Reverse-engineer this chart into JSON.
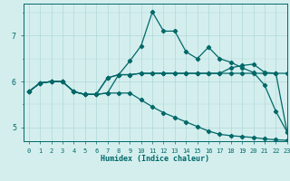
{
  "background_color": "#d4eeee",
  "grid_color": "#afd8d8",
  "line_color": "#006868",
  "xlabel": "Humidex (Indice chaleur)",
  "xlim": [
    -0.5,
    23
  ],
  "ylim": [
    4.7,
    7.7
  ],
  "yticks": [
    5,
    6,
    7
  ],
  "xticks": [
    0,
    1,
    2,
    3,
    4,
    5,
    6,
    7,
    8,
    9,
    10,
    11,
    12,
    13,
    14,
    15,
    16,
    17,
    18,
    19,
    20,
    21,
    22,
    23
  ],
  "series": [
    [
      5.78,
      5.97,
      6.0,
      6.0,
      5.78,
      5.72,
      5.72,
      5.75,
      6.15,
      6.45,
      6.78,
      7.52,
      7.1,
      7.1,
      6.65,
      6.5,
      6.75,
      6.5,
      6.42,
      6.3,
      6.2,
      5.92,
      5.35,
      4.9
    ],
    [
      5.78,
      5.97,
      6.0,
      6.0,
      5.78,
      5.72,
      5.72,
      6.08,
      6.15,
      6.15,
      6.18,
      6.18,
      6.18,
      6.18,
      6.18,
      6.18,
      6.18,
      6.18,
      6.3,
      6.35,
      6.38,
      6.2,
      6.18,
      4.9
    ],
    [
      5.78,
      5.97,
      6.0,
      6.0,
      5.78,
      5.72,
      5.72,
      6.08,
      6.15,
      6.15,
      6.18,
      6.18,
      6.18,
      6.18,
      6.18,
      6.18,
      6.18,
      6.18,
      6.18,
      6.18,
      6.18,
      6.18,
      6.18,
      6.18
    ],
    [
      5.78,
      5.97,
      6.0,
      6.0,
      5.78,
      5.72,
      5.72,
      5.75,
      5.75,
      5.75,
      5.6,
      5.45,
      5.32,
      5.22,
      5.12,
      5.02,
      4.92,
      4.85,
      4.82,
      4.8,
      4.78,
      4.75,
      4.73,
      4.72
    ]
  ],
  "marker": "D",
  "markersize": 2.2,
  "linewidth": 0.9,
  "title_fontsize": 7,
  "xlabel_fontsize": 6,
  "tick_fontsize": 5
}
